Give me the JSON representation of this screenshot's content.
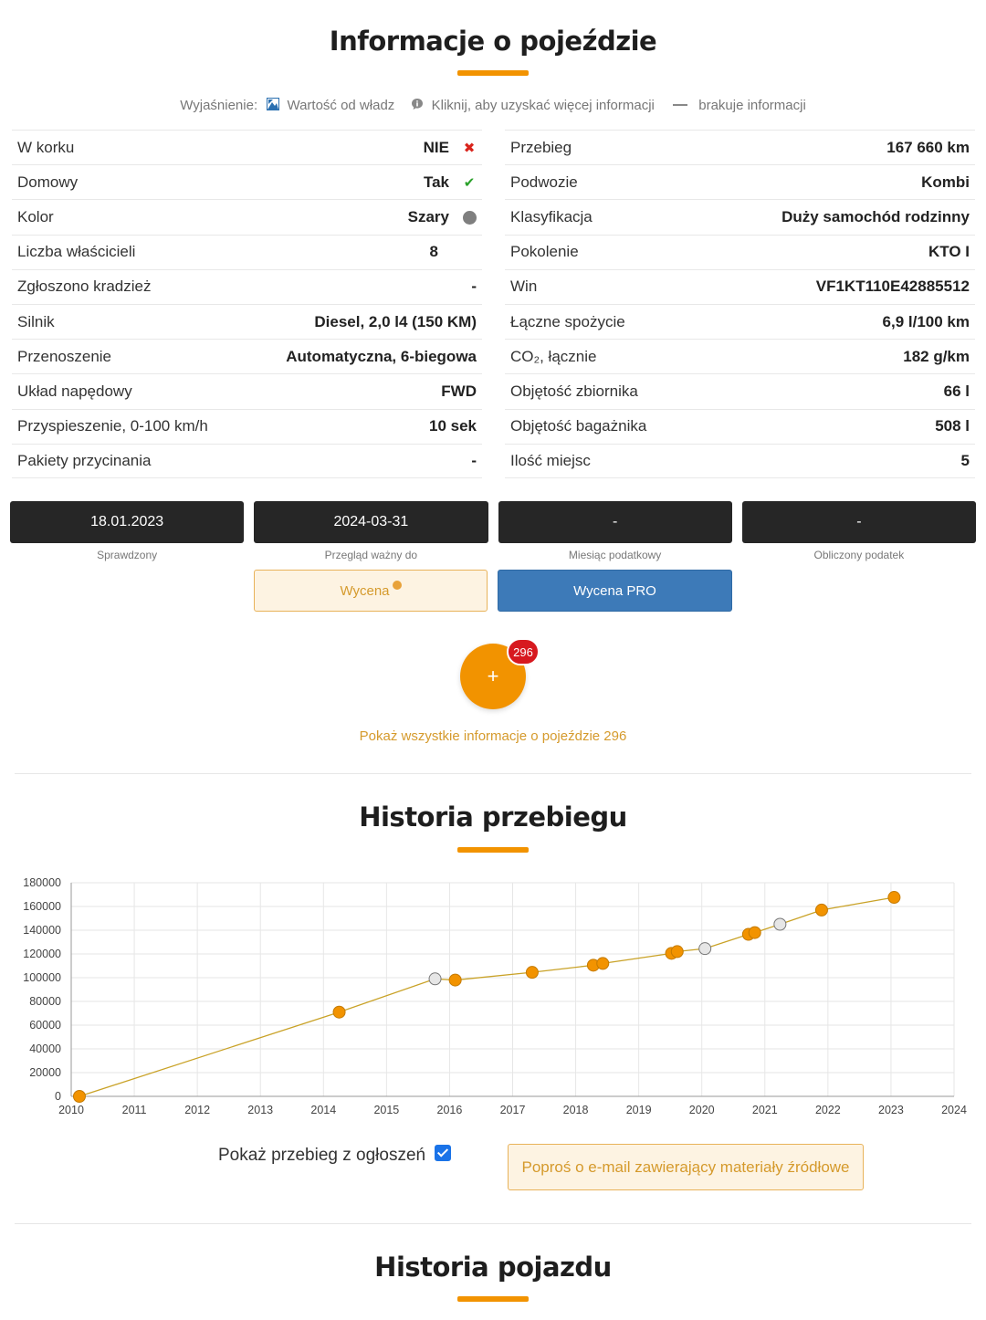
{
  "vehicle_info": {
    "title": "Informacje o pojeździe",
    "legend": {
      "prefix": "Wyjaśnienie:",
      "authority": "Wartość od władz",
      "click_info": "Kliknij, aby uzyskać więcej informacji",
      "missing": "brakuje informacji"
    },
    "left_rows": [
      {
        "label": "W korku",
        "value": "NIE",
        "indicator": "x"
      },
      {
        "label": "Domowy",
        "value": "Tak",
        "indicator": "check"
      },
      {
        "label": "Kolor",
        "value": "Szary",
        "indicator": "gray-dot"
      },
      {
        "label": "Liczba właścicieli",
        "value": "8",
        "indicator": ""
      },
      {
        "label": "Zgłoszono kradzież",
        "value": "-",
        "indicator": ""
      },
      {
        "label": "Silnik",
        "value": "Diesel, 2,0 l4 (150 KM)",
        "indicator": ""
      },
      {
        "label": "Przenoszenie",
        "value": "Automatyczna, 6-biegowa",
        "indicator": ""
      },
      {
        "label": "Układ napędowy",
        "value": "FWD",
        "indicator": ""
      },
      {
        "label": "Przyspieszenie, 0-100 km/h",
        "value": "10 sek",
        "indicator": ""
      },
      {
        "label": "Pakiety przycinania",
        "value": "-",
        "indicator": ""
      }
    ],
    "right_rows": [
      {
        "label": "Przebieg",
        "value": "167 660 km"
      },
      {
        "label": "Podwozie",
        "value": "Kombi"
      },
      {
        "label": "Klasyfikacja",
        "value": "Duży samochód rodzinny"
      },
      {
        "label": "Pokolenie",
        "value": "KTO I"
      },
      {
        "label": "Win",
        "value": "VF1KT110E42885512"
      },
      {
        "label": "Łączne spożycie",
        "value": "6,9 l/100 km"
      },
      {
        "label": "CO₂, łącznie",
        "value": "182 g/km"
      },
      {
        "label": "Objętość zbiornika",
        "value": "66 l"
      },
      {
        "label": "Objętość bagażnika",
        "value": "508 l"
      },
      {
        "label": "Ilość miejsc",
        "value": "5"
      }
    ],
    "boxes": [
      {
        "value": "18.01.2023",
        "caption": "Sprawdzony"
      },
      {
        "value": "2024-03-31",
        "caption": "Przegląd ważny do"
      },
      {
        "value": "-",
        "caption": "Miesiąc podatkowy"
      },
      {
        "value": "-",
        "caption": "Obliczony podatek"
      }
    ],
    "valuation_button": "Wycena",
    "valuation_pro_button": "Wycena PRO",
    "fab_plus": "+",
    "badge_count": "296",
    "show_all_link": "Pokaż wszystkie informacje o pojeździe 296"
  },
  "mileage_history": {
    "title": "Historia przebiegu",
    "show_ads_label": "Pokaż przebieg z ogłoszeń",
    "show_ads_checked": true,
    "email_button": "Poproś o e-mail zawierający materiały źródłowe"
  },
  "vehicle_history": {
    "title": "Historia pojazdu"
  },
  "colors": {
    "accent": "#f29300",
    "pro_blue": "#3d7ab8",
    "line": "#c9a227",
    "point_gray": "#e6e6e6"
  },
  "chart_data": {
    "type": "line",
    "title": "",
    "xlabel": "",
    "ylabel": "",
    "xlim": [
      2010,
      2024
    ],
    "ylim": [
      0,
      180000
    ],
    "x_ticks": [
      "2010",
      "2011",
      "2012",
      "2013",
      "2014",
      "2015",
      "2016",
      "2017",
      "2018",
      "2019",
      "2020",
      "2021",
      "2022",
      "2023",
      "2024"
    ],
    "y_ticks": [
      "0",
      "20000",
      "40000",
      "60000",
      "80000",
      "100000",
      "120000",
      "140000",
      "160000",
      "180000"
    ],
    "grid": true,
    "points": [
      {
        "x": 2010.13,
        "y": 0,
        "source": "registry"
      },
      {
        "x": 2014.25,
        "y": 71000,
        "source": "registry"
      },
      {
        "x": 2015.77,
        "y": 99000,
        "source": "ad"
      },
      {
        "x": 2016.09,
        "y": 98000,
        "source": "registry"
      },
      {
        "x": 2017.31,
        "y": 104500,
        "source": "registry"
      },
      {
        "x": 2018.28,
        "y": 110500,
        "source": "registry"
      },
      {
        "x": 2018.43,
        "y": 112000,
        "source": "registry"
      },
      {
        "x": 2019.52,
        "y": 120500,
        "source": "registry"
      },
      {
        "x": 2019.61,
        "y": 122000,
        "source": "registry"
      },
      {
        "x": 2020.05,
        "y": 124500,
        "source": "ad"
      },
      {
        "x": 2020.74,
        "y": 136500,
        "source": "registry"
      },
      {
        "x": 2020.84,
        "y": 138000,
        "source": "registry"
      },
      {
        "x": 2021.24,
        "y": 145000,
        "source": "ad"
      },
      {
        "x": 2021.9,
        "y": 157000,
        "source": "registry"
      },
      {
        "x": 2023.05,
        "y": 167660,
        "source": "registry"
      }
    ]
  }
}
